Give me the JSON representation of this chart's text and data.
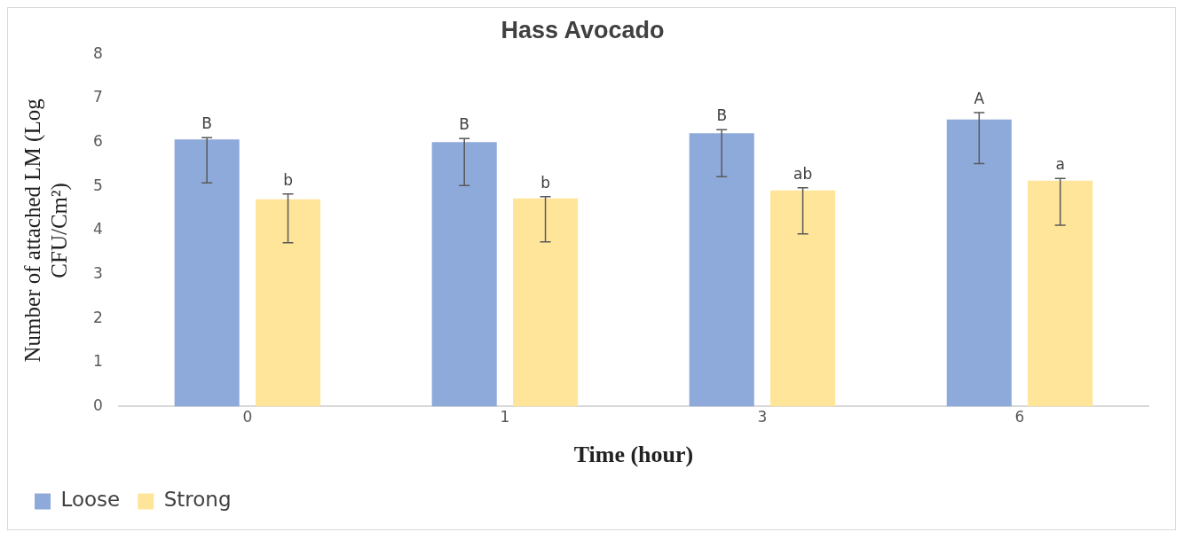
{
  "chart_data": {
    "type": "bar",
    "title": "Hass Avocado",
    "xlabel": "Time (hour)",
    "ylabel": "Number of attached LM (Log CFU/Cm²)",
    "categories": [
      "0",
      "1",
      "3",
      "6"
    ],
    "series": [
      {
        "name": "Loose",
        "color": "#8eaadb",
        "values": [
          6.07,
          6.01,
          6.21,
          6.52
        ],
        "errors": [
          [
            5.08,
            6.11
          ],
          [
            5.02,
            6.09
          ],
          [
            5.22,
            6.29
          ],
          [
            5.52,
            6.68
          ]
        ],
        "value_labels": [
          "B",
          "B",
          "B",
          "A"
        ]
      },
      {
        "name": "Strong",
        "color": "#ffe599",
        "values": [
          4.71,
          4.73,
          4.91,
          5.13
        ],
        "errors": [
          [
            3.72,
            4.83
          ],
          [
            3.74,
            4.77
          ],
          [
            3.92,
            4.97
          ],
          [
            4.12,
            5.18
          ]
        ],
        "value_labels": [
          "b",
          "b",
          "ab",
          "a"
        ]
      }
    ],
    "ylim": [
      0,
      8
    ],
    "yticks": [
      0,
      1,
      2,
      3,
      4,
      5,
      6,
      7,
      8
    ],
    "grid": false,
    "legend": "bottom left"
  }
}
